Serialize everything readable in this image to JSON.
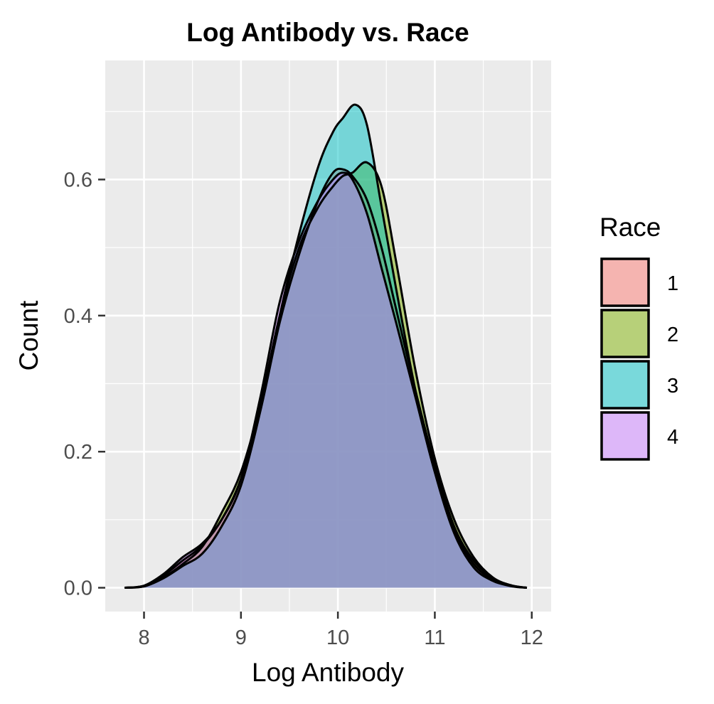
{
  "chart_data": {
    "type": "area",
    "title": "Log Antibody vs. Race",
    "xlabel": "Log Antibody",
    "ylabel": "Count",
    "xlim": [
      7.6,
      12.2
    ],
    "ylim": [
      -0.035,
      0.775
    ],
    "x_ticks": [
      8,
      9,
      10,
      11,
      12
    ],
    "y_ticks": [
      0.0,
      0.2,
      0.4,
      0.6
    ],
    "x_tick_labels": [
      "8",
      "9",
      "10",
      "11",
      "12"
    ],
    "y_tick_labels": [
      "0.0",
      "0.2",
      "0.4",
      "0.6"
    ],
    "grid": true,
    "legend": {
      "title": "Race",
      "position": "right"
    },
    "series": [
      {
        "name": "1",
        "color": "#F8766D",
        "x": [
          7.8,
          8.0,
          8.2,
          8.4,
          8.6,
          8.8,
          9.0,
          9.2,
          9.4,
          9.6,
          9.8,
          9.95,
          10.05,
          10.15,
          10.3,
          10.45,
          10.6,
          10.8,
          11.0,
          11.2,
          11.4,
          11.6,
          11.8,
          11.95
        ],
        "y": [
          0.0,
          0.003,
          0.018,
          0.04,
          0.062,
          0.1,
          0.16,
          0.26,
          0.39,
          0.49,
          0.57,
          0.61,
          0.615,
          0.605,
          0.57,
          0.5,
          0.41,
          0.29,
          0.18,
          0.09,
          0.04,
          0.014,
          0.003,
          0.0
        ]
      },
      {
        "name": "2",
        "color": "#7CAE00",
        "x": [
          7.8,
          8.0,
          8.2,
          8.4,
          8.6,
          8.8,
          9.0,
          9.2,
          9.4,
          9.6,
          9.8,
          9.95,
          10.05,
          10.15,
          10.3,
          10.45,
          10.6,
          10.8,
          11.0,
          11.2,
          11.4,
          11.6,
          11.8,
          11.95
        ],
        "y": [
          0.0,
          0.002,
          0.015,
          0.035,
          0.06,
          0.11,
          0.17,
          0.27,
          0.4,
          0.5,
          0.56,
          0.59,
          0.605,
          0.61,
          0.625,
          0.59,
          0.48,
          0.32,
          0.19,
          0.1,
          0.045,
          0.015,
          0.003,
          0.0
        ]
      },
      {
        "name": "3",
        "color": "#00BFC4",
        "x": [
          7.8,
          8.0,
          8.2,
          8.4,
          8.6,
          8.8,
          9.0,
          9.2,
          9.4,
          9.6,
          9.8,
          9.95,
          10.05,
          10.18,
          10.3,
          10.45,
          10.6,
          10.8,
          11.0,
          11.2,
          11.4,
          11.6,
          11.8,
          11.95
        ],
        "y": [
          0.0,
          0.002,
          0.014,
          0.032,
          0.05,
          0.09,
          0.15,
          0.26,
          0.4,
          0.52,
          0.62,
          0.67,
          0.69,
          0.71,
          0.68,
          0.56,
          0.44,
          0.29,
          0.17,
          0.08,
          0.03,
          0.01,
          0.002,
          0.0
        ]
      },
      {
        "name": "4",
        "color": "#C77CFF",
        "x": [
          7.8,
          8.0,
          8.2,
          8.4,
          8.6,
          8.8,
          9.0,
          9.2,
          9.4,
          9.6,
          9.8,
          9.95,
          10.05,
          10.15,
          10.3,
          10.45,
          10.6,
          10.8,
          11.0,
          11.2,
          11.4,
          11.6,
          11.8,
          11.95
        ],
        "y": [
          0.0,
          0.003,
          0.02,
          0.045,
          0.065,
          0.1,
          0.16,
          0.28,
          0.42,
          0.51,
          0.57,
          0.6,
          0.61,
          0.6,
          0.55,
          0.47,
          0.39,
          0.28,
          0.17,
          0.085,
          0.035,
          0.012,
          0.003,
          0.0
        ]
      }
    ]
  }
}
